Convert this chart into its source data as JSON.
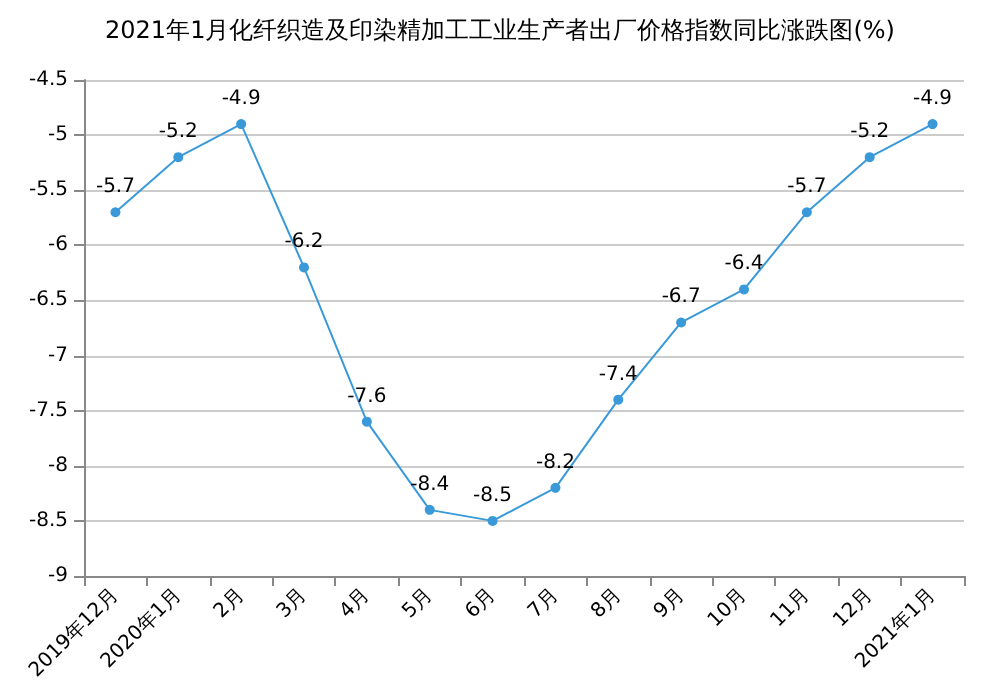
{
  "chart_data": {
    "type": "line",
    "title": "2021年1月化纤织造及印染精加工工业生产者出厂价格指数同比涨跌图(%)",
    "categories": [
      "2019年12月",
      "2020年1月",
      "2月",
      "3月",
      "4月",
      "5月",
      "6月",
      "7月",
      "8月",
      "9月",
      "10月",
      "11月",
      "12月",
      "2021年1月"
    ],
    "values": [
      -5.7,
      -5.2,
      -4.9,
      -6.2,
      -7.6,
      -8.4,
      -8.5,
      -8.2,
      -7.4,
      -6.7,
      -6.4,
      -5.7,
      -5.2,
      -4.9
    ],
    "color": "#3a9ad9",
    "ylim": [
      -9,
      -4.5
    ],
    "yticks": [
      -9,
      -8.5,
      -8,
      -7.5,
      -7,
      -6.5,
      -6,
      -5.5,
      -5,
      -4.5
    ],
    "grid": "y",
    "marker": "circle",
    "data_labels": true
  }
}
